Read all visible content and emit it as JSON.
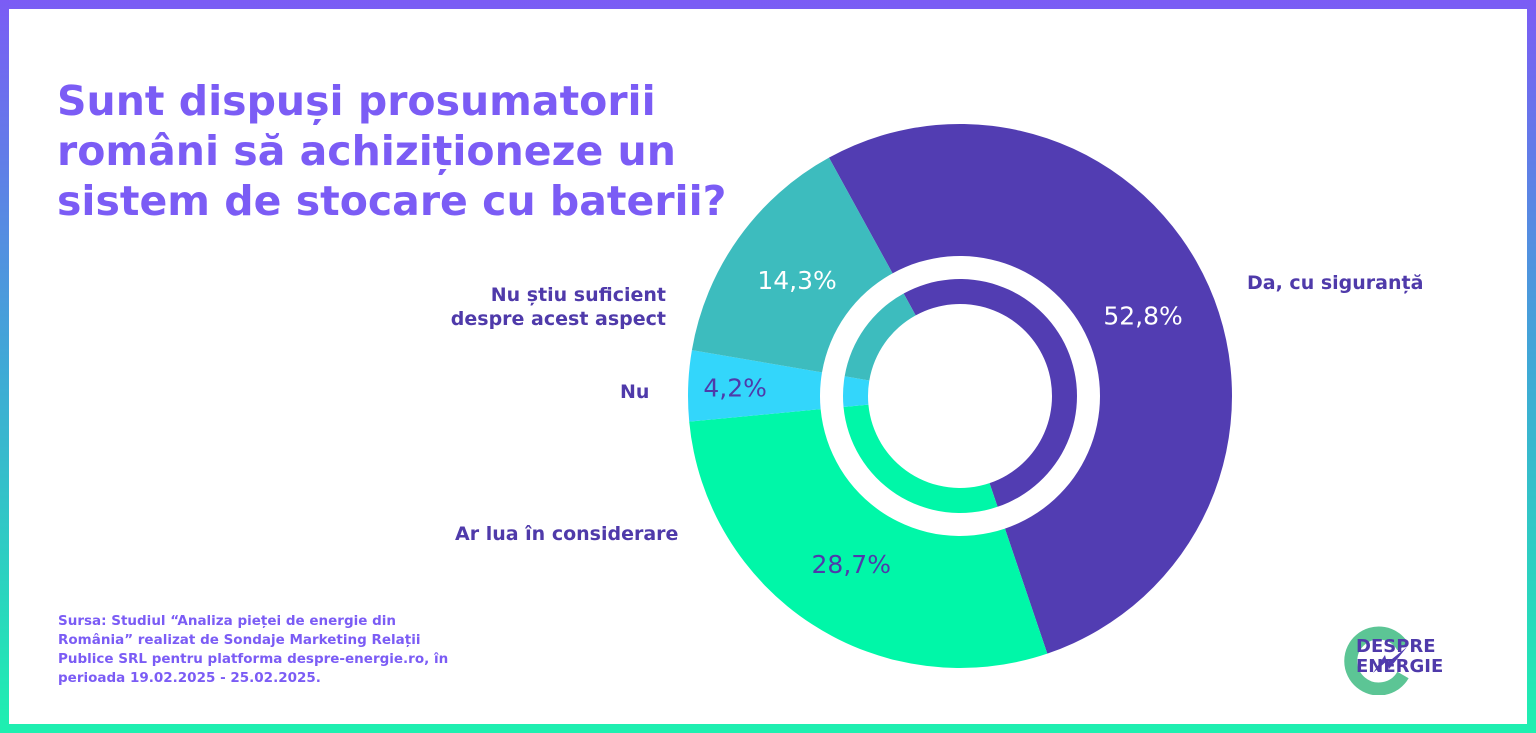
{
  "chart_data": {
    "type": "pie",
    "title": "Sunt dispuși prosumatorii români să achiziționeze un sistem de stocare cu baterii?",
    "categories": [
      "Da, cu siguranță",
      "Ar lua în considerare",
      "Nu",
      "Nu știu suficient despre acest aspect"
    ],
    "values": [
      52.8,
      28.7,
      4.2,
      14.3
    ],
    "value_labels": [
      "52,8%",
      "28,7%",
      "4,2%",
      "14,3%"
    ],
    "colors": [
      "#523db2",
      "#00f7a8",
      "#33d6fb",
      "#3dbcbe"
    ],
    "value_label_colors": [
      "#ffffff",
      "#4f3aaa",
      "#4f3aaa",
      "#ffffff"
    ],
    "donut": true
  },
  "source": "Sursa: Studiul “Analiza pieței de energie din România” realizat de Sondaje Marketing Relații Publice SRL pentru platforma despre-energie.ro, în perioada 19.02.2025 - 25.02.2025.",
  "logo": {
    "line1": "DESPRE",
    "line2": "ENERGIE"
  }
}
